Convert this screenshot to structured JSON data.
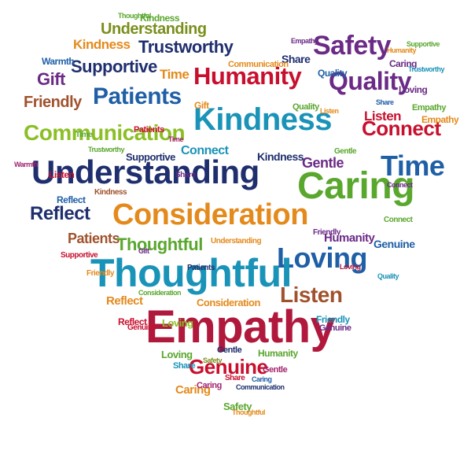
{
  "palette": {
    "red": "#c8102e",
    "blue": "#1f5fa6",
    "teal": "#1a93b8",
    "green": "#5aa72e",
    "lime": "#8cbf26",
    "orange": "#e48a1c",
    "purple": "#6b2a86",
    "magenta": "#a3246e",
    "navy": "#1f2f6e",
    "brown": "#a0522d",
    "crimson": "#b0183c",
    "olive": "#7a8f1c"
  },
  "words": [
    {
      "text": "Thoughtful",
      "c": "green"
    },
    {
      "text": "Kindness",
      "c": "green"
    },
    {
      "text": "Understanding",
      "c": "olive"
    },
    {
      "text": "Empathy",
      "c": "purple"
    },
    {
      "text": "Kindness",
      "c": "orange"
    },
    {
      "text": "Trustworthy",
      "c": "navy"
    },
    {
      "text": "Safety",
      "c": "purple"
    },
    {
      "text": "Supportive",
      "c": "navy"
    },
    {
      "text": "Humanity",
      "c": "red"
    },
    {
      "text": "Quality",
      "c": "purple"
    },
    {
      "text": "Time",
      "c": "orange"
    },
    {
      "text": "Gift",
      "c": "purple"
    },
    {
      "text": "Patients",
      "c": "blue"
    },
    {
      "text": "Friendly",
      "c": "brown"
    },
    {
      "text": "Communication",
      "c": "lime"
    },
    {
      "text": "Kindness",
      "c": "teal"
    },
    {
      "text": "Connect",
      "c": "red"
    },
    {
      "text": "Listen",
      "c": "red"
    },
    {
      "text": "Understanding",
      "c": "navy"
    },
    {
      "text": "Time",
      "c": "blue"
    },
    {
      "text": "Gentle",
      "c": "purple"
    },
    {
      "text": "Caring",
      "c": "green"
    },
    {
      "text": "Reflect",
      "c": "navy"
    },
    {
      "text": "Consideration",
      "c": "orange"
    },
    {
      "text": "Patients",
      "c": "brown"
    },
    {
      "text": "Thoughtful",
      "c": "green"
    },
    {
      "text": "Loving",
      "c": "blue"
    },
    {
      "text": "Thoughtful",
      "c": "teal"
    },
    {
      "text": "Listen",
      "c": "brown"
    },
    {
      "text": "Reflect",
      "c": "orange"
    },
    {
      "text": "Empathy",
      "c": "crimson"
    },
    {
      "text": "Genuine",
      "c": "red"
    },
    {
      "text": "Caring",
      "c": "orange"
    },
    {
      "text": "Safety",
      "c": "green"
    },
    {
      "text": "Quality",
      "c": "blue"
    },
    {
      "text": "Humanity",
      "c": "purple"
    },
    {
      "text": "Connect",
      "c": "teal"
    },
    {
      "text": "Share",
      "c": "navy"
    },
    {
      "text": "Caring",
      "c": "purple"
    },
    {
      "text": "Warmth",
      "c": "blue"
    },
    {
      "text": "Gift",
      "c": "orange"
    },
    {
      "text": "Listen",
      "c": "red"
    },
    {
      "text": "Kindness",
      "c": "navy"
    },
    {
      "text": "Gentle",
      "c": "green"
    },
    {
      "text": "Genuine",
      "c": "blue"
    },
    {
      "text": "Loving",
      "c": "green"
    },
    {
      "text": "Share",
      "c": "purple"
    },
    {
      "text": "Supportive",
      "c": "navy"
    },
    {
      "text": "Trustworthy",
      "c": "green"
    },
    {
      "text": "Consideration",
      "c": "orange"
    },
    {
      "text": "Friendly",
      "c": "teal"
    },
    {
      "text": "Humanity",
      "c": "green"
    },
    {
      "text": "Reflect",
      "c": "red"
    },
    {
      "text": "Share",
      "c": "blue"
    },
    {
      "text": "Time",
      "c": "green"
    },
    {
      "text": "Quality",
      "c": "green"
    },
    {
      "text": "Communication",
      "c": "orange"
    },
    {
      "text": "Caring",
      "c": "magenta"
    },
    {
      "text": "Loving",
      "c": "purple"
    },
    {
      "text": "Connect",
      "c": "purple"
    },
    {
      "text": "Warmth",
      "c": "magenta"
    },
    {
      "text": "Empathy",
      "c": "green"
    },
    {
      "text": "Genuine",
      "c": "red"
    },
    {
      "text": "Friendly",
      "c": "orange"
    },
    {
      "text": "Loving",
      "c": "lime"
    },
    {
      "text": "Gentle",
      "c": "navy"
    },
    {
      "text": "Share",
      "c": "teal"
    },
    {
      "text": "Safety",
      "c": "olive"
    },
    {
      "text": "Communication",
      "c": "navy"
    },
    {
      "text": "Patients",
      "c": "red"
    },
    {
      "text": "Understanding",
      "c": "orange"
    },
    {
      "text": "Connect",
      "c": "green"
    },
    {
      "text": "Supportive",
      "c": "red"
    },
    {
      "text": "Gift",
      "c": "purple"
    },
    {
      "text": "Kindness",
      "c": "brown"
    },
    {
      "text": "Reflect",
      "c": "blue"
    },
    {
      "text": "Empathy",
      "c": "orange"
    },
    {
      "text": "Quality",
      "c": "teal"
    },
    {
      "text": "Time",
      "c": "magenta"
    },
    {
      "text": "Listen",
      "c": "orange"
    },
    {
      "text": "Genuine",
      "c": "purple"
    },
    {
      "text": "Loving",
      "c": "crimson"
    },
    {
      "text": "Share",
      "c": "red"
    },
    {
      "text": "Gentle",
      "c": "magenta"
    },
    {
      "text": "Patients",
      "c": "navy"
    },
    {
      "text": "Friendly",
      "c": "purple"
    },
    {
      "text": "Trustworthy",
      "c": "teal"
    },
    {
      "text": "Consideration",
      "c": "green"
    },
    {
      "text": "Thoughtful",
      "c": "orange"
    },
    {
      "text": "Caring",
      "c": "blue"
    },
    {
      "text": "Supportive",
      "c": "green"
    },
    {
      "text": "Humanity",
      "c": "orange"
    }
  ]
}
